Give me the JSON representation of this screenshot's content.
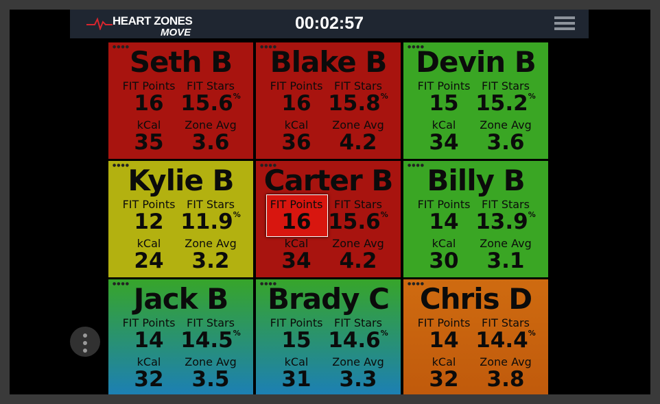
{
  "header": {
    "brand": "HEART ZONES",
    "subbrand": "MOVE",
    "timer": "00:02:57"
  },
  "labels": {
    "fit_points": "FIT Points",
    "fit_stars": "FIT Stars",
    "kcal": "kCal",
    "zone_avg": "Zone Avg",
    "stars_unit": "%"
  },
  "tiles": [
    {
      "name": "Seth B",
      "fit_points": 16,
      "fit_stars": 15.6,
      "kcal": 35,
      "zone_avg": 3.6
    },
    {
      "name": "Blake B",
      "fit_points": 16,
      "fit_stars": 15.8,
      "kcal": 36,
      "zone_avg": 4.2
    },
    {
      "name": "Devin B",
      "fit_points": 15,
      "fit_stars": 15.2,
      "kcal": 34,
      "zone_avg": 3.6
    },
    {
      "name": "Kylie B",
      "fit_points": 12,
      "fit_stars": 11.9,
      "kcal": 24,
      "zone_avg": 3.2
    },
    {
      "name": "Carter B",
      "fit_points": 16,
      "fit_stars": 15.6,
      "kcal": 34,
      "zone_avg": 4.2
    },
    {
      "name": "Billy B",
      "fit_points": 14,
      "fit_stars": 13.9,
      "kcal": 30,
      "zone_avg": 3.1
    },
    {
      "name": "Jack B",
      "fit_points": 14,
      "fit_stars": 14.5,
      "kcal": 32,
      "zone_avg": 3.5
    },
    {
      "name": "Brady C",
      "fit_points": 15,
      "fit_stars": 14.6,
      "kcal": 31,
      "zone_avg": 3.3
    },
    {
      "name": "Chris D",
      "fit_points": 14,
      "fit_stars": 14.4,
      "kcal": 32,
      "zone_avg": 3.8
    }
  ]
}
